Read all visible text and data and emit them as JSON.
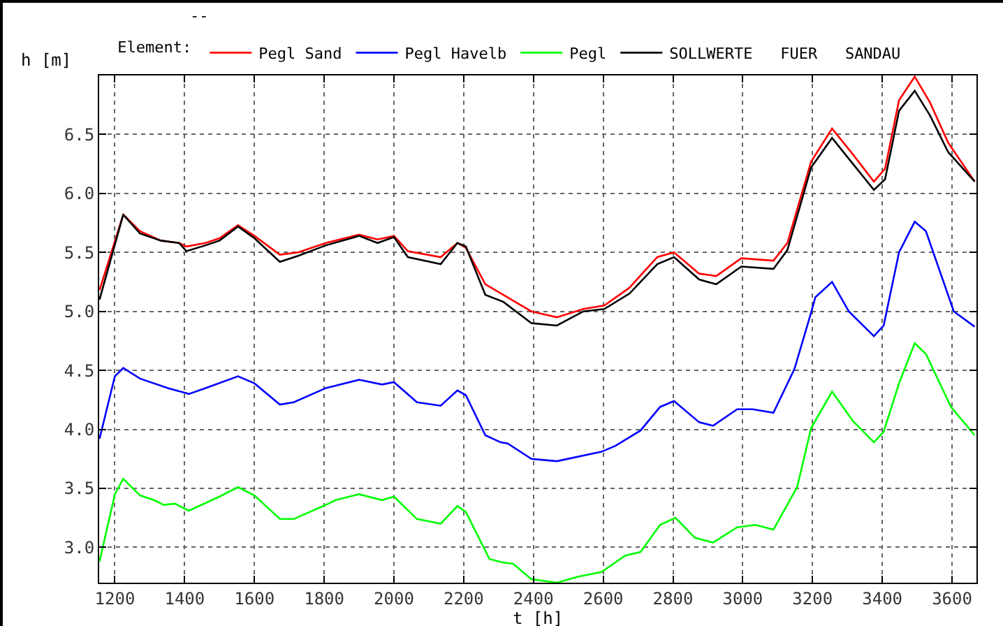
{
  "chart_data": {
    "type": "line",
    "subtitle": "--",
    "xlabel": "t [h]",
    "ylabel": "h [m]",
    "legend_title": "Element:",
    "legend": "top",
    "grid": true,
    "line_style": "solid",
    "marker": "none",
    "xlim": [
      1155,
      3670
    ],
    "xticks": [
      1200,
      1400,
      1600,
      1800,
      2000,
      2200,
      2400,
      2600,
      2800,
      3000,
      3200,
      3400,
      3600
    ],
    "ylim": [
      2.7,
      7.0
    ],
    "yticks": [
      {
        "value": 3,
        "label": "3.0"
      },
      3.5,
      {
        "value": 4,
        "label": "4.0"
      },
      4.5,
      {
        "value": 5,
        "label": "5.0"
      },
      5.5,
      {
        "value": 6,
        "label": "6.0"
      },
      6.5
    ],
    "series": [
      {
        "name": "Pegl Sand",
        "color": "#ff0000",
        "x": [
          1156,
          1224,
          1272,
          1332,
          1384,
          1405,
          1460,
          1500,
          1553,
          1600,
          1673,
          1725,
          1805,
          1900,
          1953,
          2000,
          2040,
          2134,
          2182,
          2206,
          2262,
          2314,
          2394,
          2467,
          2543,
          2603,
          2675,
          2755,
          2803,
          2875,
          2924,
          2996,
          3088,
          3128,
          3196,
          3256,
          3316,
          3376,
          3408,
          3448,
          3493,
          3537,
          3589,
          3665
        ],
        "values": [
          5.18,
          5.82,
          5.68,
          5.6,
          5.58,
          5.55,
          5.58,
          5.62,
          5.73,
          5.64,
          5.48,
          5.5,
          5.58,
          5.65,
          5.61,
          5.64,
          5.51,
          5.46,
          5.58,
          5.54,
          5.23,
          5.14,
          5.0,
          4.95,
          5.02,
          5.05,
          5.2,
          5.46,
          5.5,
          5.32,
          5.3,
          5.45,
          5.43,
          5.58,
          6.27,
          6.55,
          6.33,
          6.1,
          6.21,
          6.79,
          6.99,
          6.77,
          6.43,
          6.1
        ]
      },
      {
        "name": "Pegl Havelb",
        "color": "#0000ff",
        "x": [
          1156,
          1200,
          1224,
          1272,
          1352,
          1412,
          1460,
          1553,
          1600,
          1673,
          1713,
          1805,
          1900,
          1966,
          2000,
          2066,
          2134,
          2182,
          2206,
          2262,
          2306,
          2326,
          2394,
          2467,
          2595,
          2635,
          2707,
          2763,
          2803,
          2875,
          2915,
          2984,
          3028,
          3088,
          3148,
          3196,
          3208,
          3256,
          3304,
          3376,
          3404,
          3448,
          3493,
          3525,
          3605,
          3665
        ],
        "values": [
          3.92,
          4.45,
          4.52,
          4.43,
          4.35,
          4.3,
          4.35,
          4.45,
          4.39,
          4.21,
          4.23,
          4.35,
          4.42,
          4.38,
          4.4,
          4.23,
          4.2,
          4.33,
          4.29,
          3.95,
          3.89,
          3.88,
          3.75,
          3.73,
          3.81,
          3.86,
          3.99,
          4.19,
          4.24,
          4.06,
          4.03,
          4.17,
          4.17,
          4.14,
          4.51,
          4.99,
          5.12,
          5.25,
          5.0,
          4.79,
          4.88,
          5.5,
          5.76,
          5.68,
          5.0,
          4.87
        ]
      },
      {
        "name": "Pegl",
        "color": "#00ff00",
        "x": [
          1156,
          1200,
          1224,
          1272,
          1312,
          1340,
          1372,
          1412,
          1500,
          1553,
          1600,
          1673,
          1713,
          1805,
          1833,
          1900,
          1966,
          2000,
          2066,
          2134,
          2182,
          2206,
          2274,
          2314,
          2342,
          2394,
          2467,
          2527,
          2595,
          2663,
          2707,
          2763,
          2807,
          2863,
          2915,
          2984,
          3036,
          3088,
          3156,
          3196,
          3256,
          3316,
          3376,
          3404,
          3448,
          3493,
          3525,
          3597,
          3665
        ],
        "values": [
          2.88,
          3.45,
          3.58,
          3.44,
          3.4,
          3.36,
          3.37,
          3.31,
          3.43,
          3.51,
          3.44,
          3.24,
          3.24,
          3.36,
          3.4,
          3.45,
          3.4,
          3.43,
          3.24,
          3.2,
          3.35,
          3.3,
          2.9,
          2.87,
          2.86,
          2.73,
          2.7,
          2.75,
          2.79,
          2.93,
          2.96,
          3.19,
          3.25,
          3.08,
          3.04,
          3.17,
          3.19,
          3.15,
          3.51,
          4.01,
          4.32,
          4.07,
          3.89,
          3.98,
          4.39,
          4.73,
          4.64,
          4.19,
          3.95
        ]
      },
      {
        "name": "SOLLWERTE   FUER   SANDAU",
        "color": "#000000",
        "x": [
          1156,
          1224,
          1272,
          1332,
          1384,
          1405,
          1460,
          1500,
          1553,
          1600,
          1673,
          1725,
          1805,
          1900,
          1953,
          2000,
          2040,
          2134,
          2182,
          2206,
          2262,
          2314,
          2394,
          2467,
          2543,
          2603,
          2675,
          2755,
          2803,
          2875,
          2924,
          2996,
          3088,
          3128,
          3196,
          3256,
          3316,
          3376,
          3408,
          3448,
          3493,
          3537,
          3589,
          3665
        ],
        "values": [
          5.1,
          5.82,
          5.66,
          5.6,
          5.58,
          5.51,
          5.56,
          5.6,
          5.72,
          5.62,
          5.42,
          5.47,
          5.56,
          5.64,
          5.58,
          5.63,
          5.46,
          5.4,
          5.58,
          5.55,
          5.14,
          5.08,
          4.9,
          4.88,
          5.0,
          5.02,
          5.15,
          5.4,
          5.46,
          5.27,
          5.23,
          5.38,
          5.36,
          5.52,
          6.22,
          6.47,
          6.25,
          6.03,
          6.12,
          6.7,
          6.87,
          6.66,
          6.35,
          6.1
        ]
      }
    ]
  }
}
